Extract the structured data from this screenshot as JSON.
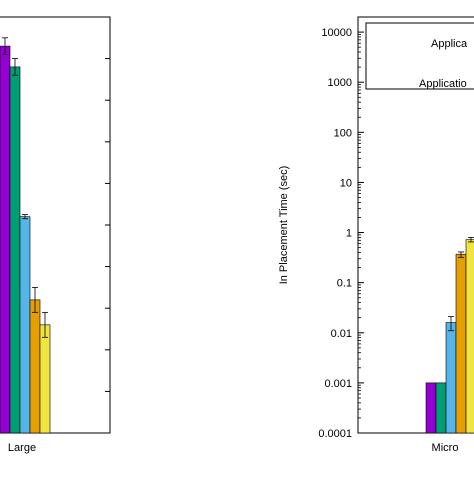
{
  "chart_data": [
    {
      "type": "bar",
      "panel": "left (cropped)",
      "categories": [
        "Large"
      ],
      "series": [
        {
          "color": "#9400d3",
          "values": [
            0.93
          ],
          "err": [
            0.02
          ]
        },
        {
          "color": "#009e73",
          "values": [
            0.88
          ],
          "err": [
            0.02
          ]
        },
        {
          "color": "#56b4e9",
          "values": [
            0.52
          ],
          "err": [
            0.005
          ]
        },
        {
          "color": "#e69f00",
          "values": [
            0.32
          ],
          "err": [
            0.03
          ]
        },
        {
          "color": "#f0e442",
          "values": [
            0.26
          ],
          "err": [
            0.03
          ]
        }
      ],
      "ylim": [
        0,
        1
      ],
      "grid": false
    },
    {
      "type": "bar",
      "panel": "right (cropped)",
      "categories": [
        "Micro"
      ],
      "ylabel": "In Placement Time (sec)",
      "yscale": "log",
      "ylim": [
        0.0001,
        20000
      ],
      "yticks": [
        "0.0001",
        "0.001",
        "0.01",
        "0.1",
        "1",
        "10",
        "100",
        "1000",
        "10000"
      ],
      "series": [
        {
          "color": "#9400d3",
          "values": [
            0.001
          ]
        },
        {
          "color": "#009e73",
          "values": [
            0.001
          ]
        },
        {
          "color": "#56b4e9",
          "values": [
            0.016
          ],
          "err_low": [
            0.011
          ],
          "err_high": [
            0.021
          ]
        },
        {
          "color": "#e69f00",
          "values": [
            0.37
          ],
          "err_low": [
            0.32
          ],
          "err_high": [
            0.41
          ]
        },
        {
          "color": "#f0e442",
          "values": [
            0.72
          ],
          "err_low": [
            0.65
          ],
          "err_high": [
            0.8
          ]
        }
      ],
      "legend": {
        "placement": "top-right",
        "entries": [
          "Applica",
          "Applicatio"
        ]
      },
      "grid": false
    }
  ]
}
